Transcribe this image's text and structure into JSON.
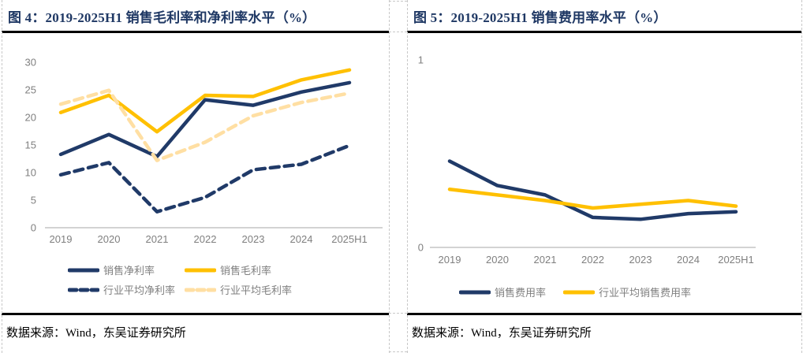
{
  "panels": [
    {
      "title": "图 4：2019-2025H1 销售毛利率和净利率水平（%）",
      "source": "数据来源：Wind，东吴证券研究所"
    },
    {
      "title": "图 5：2019-2025H1 销售费用率水平（%）",
      "source": "数据来源：Wind，东吴证券研究所"
    }
  ],
  "colors": {
    "navy": "#203a68",
    "gold": "#ffc000",
    "light_gold": "#ffdfa3",
    "title_navy": "#1f3864",
    "axis_line": "#d3d3d3",
    "tick_text": "#7f7f7f",
    "divider_black": "#000000",
    "table_dash": "#c8c8c8"
  },
  "chart_data": [
    {
      "type": "line",
      "title": "2019-2025H1 销售毛利率和净利率水平（%）",
      "categories": [
        "2019",
        "2020",
        "2021",
        "2022",
        "2023",
        "2024",
        "2025H1"
      ],
      "ylim": [
        0,
        30
      ],
      "yticks": [
        0,
        5,
        10,
        15,
        20,
        25,
        30
      ],
      "grid": false,
      "legend_position": "bottom",
      "series": [
        {
          "name": "销售净利率",
          "color": "#203a68",
          "dash": "solid",
          "values": [
            13.3,
            16.9,
            12.9,
            23.2,
            22.2,
            24.6,
            26.3
          ]
        },
        {
          "name": "销售毛利率",
          "color": "#ffc000",
          "dash": "solid",
          "values": [
            20.9,
            24.0,
            17.4,
            24.0,
            23.8,
            26.8,
            28.6
          ]
        },
        {
          "name": "行业平均净利率",
          "color": "#203a68",
          "dash": "dashed",
          "values": [
            9.6,
            11.8,
            2.9,
            5.5,
            10.5,
            11.5,
            14.9
          ]
        },
        {
          "name": "行业平均毛利率",
          "color": "#ffdfa3",
          "dash": "dashed",
          "values": [
            22.4,
            24.9,
            12.2,
            15.5,
            20.3,
            22.7,
            24.4
          ]
        }
      ]
    },
    {
      "type": "line",
      "title": "2019-2025H1 销售费用率水平（%）",
      "categories": [
        "2019",
        "2020",
        "2021",
        "2022",
        "2023",
        "2024",
        "2025H1"
      ],
      "ylim": [
        0,
        1
      ],
      "yticks": [
        0,
        1
      ],
      "grid": false,
      "legend_position": "bottom",
      "series": [
        {
          "name": "销售费用率",
          "color": "#203a68",
          "dash": "solid",
          "values": [
            0.46,
            0.33,
            0.28,
            0.16,
            0.15,
            0.18,
            0.19
          ]
        },
        {
          "name": "行业平均销售费用率",
          "color": "#ffc000",
          "dash": "solid",
          "values": [
            0.31,
            0.28,
            0.25,
            0.21,
            0.23,
            0.25,
            0.22
          ]
        }
      ]
    }
  ]
}
